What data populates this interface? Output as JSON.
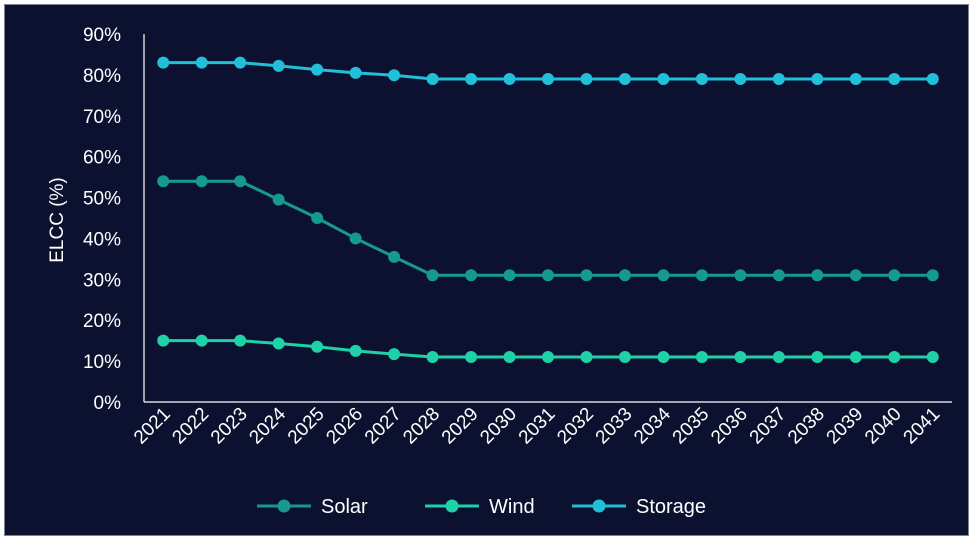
{
  "chart_data": {
    "type": "line",
    "title": "",
    "xlabel": "",
    "ylabel": "ELCC (%)",
    "ylim": [
      0,
      90
    ],
    "yticks": [
      "0%",
      "10%",
      "20%",
      "30%",
      "40%",
      "50%",
      "60%",
      "70%",
      "80%",
      "90%"
    ],
    "grid": false,
    "legend_position": "bottom",
    "x": [
      "2021",
      "2022",
      "2023",
      "2024",
      "2025",
      "2026",
      "2027",
      "2028",
      "2029",
      "2030",
      "2031",
      "2032",
      "2033",
      "2034",
      "2035",
      "2036",
      "2037",
      "2038",
      "2039",
      "2040",
      "2041"
    ],
    "series": [
      {
        "name": "Solar",
        "color": "#16998f",
        "values": [
          54,
          54,
          54,
          49.5,
          45,
          40,
          35.5,
          31,
          31,
          31,
          31,
          31,
          31,
          31,
          31,
          31,
          31,
          31,
          31,
          31,
          31
        ]
      },
      {
        "name": "Wind",
        "color": "#1fd1a6",
        "values": [
          15,
          15,
          15,
          14.3,
          13.5,
          12.5,
          11.7,
          11,
          11,
          11,
          11,
          11,
          11,
          11,
          11,
          11,
          11,
          11,
          11,
          11,
          11
        ]
      },
      {
        "name": "Storage",
        "color": "#21bfd9",
        "values": [
          83,
          83,
          83,
          82.2,
          81.3,
          80.5,
          79.9,
          79,
          79,
          79,
          79,
          79,
          79,
          79,
          79,
          79,
          79,
          79,
          79,
          79,
          79
        ]
      }
    ]
  }
}
